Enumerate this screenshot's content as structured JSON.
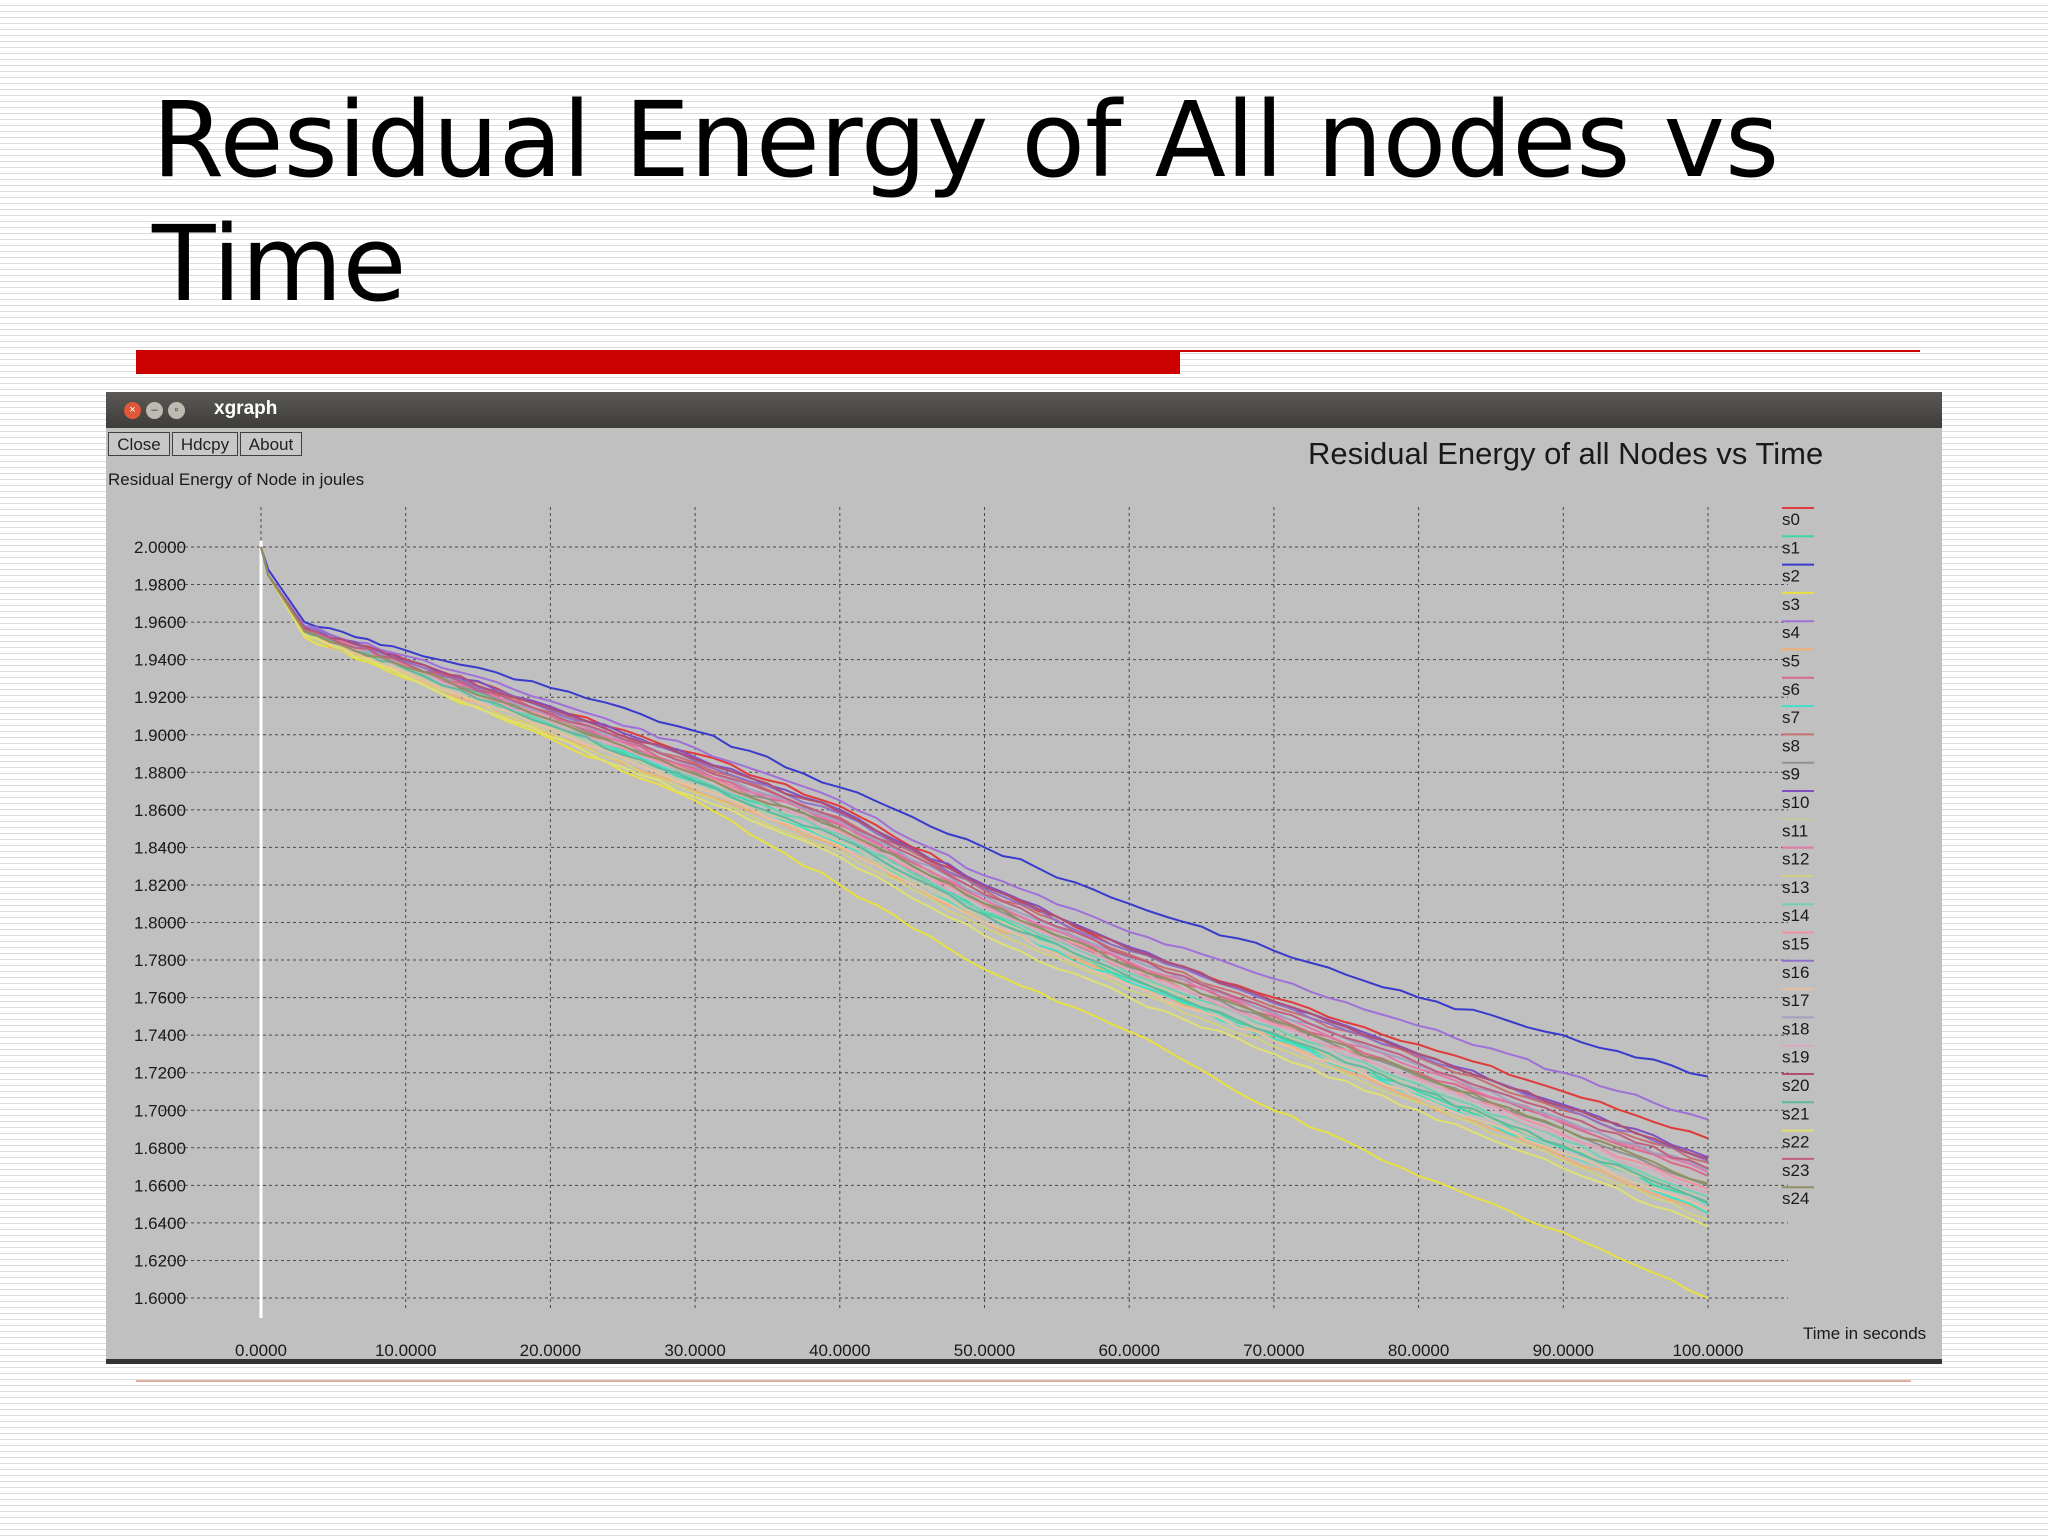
{
  "slide": {
    "title": "Residual Energy of All nodes vs Time"
  },
  "window": {
    "title": "xgraph",
    "buttons": [
      "Close",
      "Hdcpy",
      "About"
    ],
    "control_icons": [
      "close-icon",
      "minimize-icon",
      "maximize-icon"
    ]
  },
  "chart_data": {
    "type": "line",
    "title": "Residual Energy of all Nodes vs Time",
    "xlabel": "Time in seconds",
    "ylabel": "Residual Energy of Node in joules",
    "xlim": [
      0,
      100
    ],
    "ylim": [
      1.6,
      2.0
    ],
    "grid": true,
    "legend_position": "right",
    "x_ticks": [
      "0.0000",
      "10.0000",
      "20.0000",
      "30.0000",
      "40.0000",
      "50.0000",
      "60.0000",
      "70.0000",
      "80.0000",
      "90.0000",
      "100.0000"
    ],
    "y_ticks": [
      "2.0000",
      "1.9800",
      "1.9600",
      "1.9400",
      "1.9200",
      "1.9000",
      "1.8800",
      "1.8600",
      "1.8400",
      "1.8200",
      "1.8000",
      "1.7800",
      "1.7600",
      "1.7400",
      "1.7200",
      "1.7000",
      "1.6800",
      "1.6600",
      "1.6400",
      "1.6200",
      "1.6000"
    ],
    "x": [
      0,
      0.5,
      3,
      10,
      20,
      30,
      40,
      50,
      60,
      70,
      80,
      90,
      100
    ],
    "series": [
      {
        "name": "s0",
        "color": "#e03a3a",
        "values": [
          2.0,
          1.985,
          1.957,
          1.94,
          1.915,
          1.89,
          1.862,
          1.82,
          1.785,
          1.76,
          1.735,
          1.71,
          1.685
        ]
      },
      {
        "name": "s1",
        "color": "#3ed8a8",
        "values": [
          2.0,
          1.985,
          1.954,
          1.935,
          1.905,
          1.875,
          1.848,
          1.805,
          1.77,
          1.74,
          1.71,
          1.68,
          1.65
        ]
      },
      {
        "name": "s2",
        "color": "#3a3acc",
        "values": [
          2.0,
          1.988,
          1.96,
          1.945,
          1.925,
          1.902,
          1.872,
          1.84,
          1.81,
          1.785,
          1.76,
          1.74,
          1.718
        ]
      },
      {
        "name": "s3",
        "color": "#e8e040",
        "values": [
          2.0,
          1.985,
          1.952,
          1.93,
          1.898,
          1.865,
          1.82,
          1.775,
          1.742,
          1.7,
          1.665,
          1.635,
          1.6
        ]
      },
      {
        "name": "s4",
        "color": "#a070d8",
        "values": [
          2.0,
          1.985,
          1.958,
          1.942,
          1.918,
          1.893,
          1.865,
          1.825,
          1.795,
          1.77,
          1.745,
          1.72,
          1.695
        ]
      },
      {
        "name": "s5",
        "color": "#f0b070",
        "values": [
          2.0,
          1.985,
          1.953,
          1.932,
          1.9,
          1.87,
          1.84,
          1.8,
          1.768,
          1.738,
          1.705,
          1.675,
          1.645
        ]
      },
      {
        "name": "s6",
        "color": "#d86a8a",
        "values": [
          2.0,
          1.985,
          1.956,
          1.937,
          1.91,
          1.882,
          1.852,
          1.812,
          1.778,
          1.75,
          1.72,
          1.693,
          1.665
        ]
      },
      {
        "name": "s7",
        "color": "#40e0c8",
        "values": [
          2.0,
          1.985,
          1.955,
          1.936,
          1.906,
          1.876,
          1.842,
          1.8,
          1.768,
          1.738,
          1.708,
          1.677,
          1.645
        ]
      },
      {
        "name": "s8",
        "color": "#c87070",
        "values": [
          2.0,
          1.985,
          1.956,
          1.938,
          1.912,
          1.885,
          1.856,
          1.817,
          1.783,
          1.755,
          1.728,
          1.7,
          1.672
        ]
      },
      {
        "name": "s9",
        "color": "#909090",
        "values": [
          2.0,
          1.985,
          1.955,
          1.936,
          1.908,
          1.88,
          1.85,
          1.81,
          1.776,
          1.747,
          1.718,
          1.69,
          1.66
        ]
      },
      {
        "name": "s10",
        "color": "#8050c0",
        "values": [
          2.0,
          1.985,
          1.957,
          1.94,
          1.915,
          1.888,
          1.86,
          1.82,
          1.787,
          1.758,
          1.73,
          1.703,
          1.675
        ]
      },
      {
        "name": "s11",
        "color": "#c8c8a0",
        "values": [
          2.0,
          1.985,
          1.954,
          1.934,
          1.904,
          1.873,
          1.843,
          1.803,
          1.771,
          1.741,
          1.711,
          1.681,
          1.651
        ]
      },
      {
        "name": "s12",
        "color": "#e07aa8",
        "values": [
          2.0,
          1.985,
          1.956,
          1.937,
          1.91,
          1.881,
          1.853,
          1.812,
          1.779,
          1.751,
          1.722,
          1.694,
          1.667
        ]
      },
      {
        "name": "s13",
        "color": "#d0d080",
        "values": [
          2.0,
          1.985,
          1.953,
          1.932,
          1.901,
          1.869,
          1.838,
          1.797,
          1.764,
          1.734,
          1.704,
          1.673,
          1.642
        ]
      },
      {
        "name": "s14",
        "color": "#70d0b0",
        "values": [
          2.0,
          1.985,
          1.955,
          1.935,
          1.906,
          1.877,
          1.847,
          1.806,
          1.773,
          1.744,
          1.714,
          1.684,
          1.654
        ]
      },
      {
        "name": "s15",
        "color": "#f090a0",
        "values": [
          2.0,
          1.985,
          1.955,
          1.936,
          1.908,
          1.879,
          1.849,
          1.809,
          1.775,
          1.746,
          1.717,
          1.687,
          1.658
        ]
      },
      {
        "name": "s16",
        "color": "#9070c8",
        "values": [
          2.0,
          1.985,
          1.957,
          1.939,
          1.913,
          1.886,
          1.858,
          1.818,
          1.785,
          1.757,
          1.729,
          1.701,
          1.673
        ]
      },
      {
        "name": "s17",
        "color": "#e8c0a0",
        "values": [
          2.0,
          1.985,
          1.954,
          1.933,
          1.903,
          1.872,
          1.841,
          1.8,
          1.767,
          1.737,
          1.707,
          1.677,
          1.647
        ]
      },
      {
        "name": "s18",
        "color": "#a0a0c0",
        "values": [
          2.0,
          1.985,
          1.956,
          1.938,
          1.911,
          1.883,
          1.854,
          1.814,
          1.781,
          1.752,
          1.724,
          1.695,
          1.668
        ]
      },
      {
        "name": "s19",
        "color": "#d8a8c0",
        "values": [
          2.0,
          1.985,
          1.955,
          1.936,
          1.907,
          1.878,
          1.848,
          1.808,
          1.775,
          1.745,
          1.716,
          1.686,
          1.656
        ]
      },
      {
        "name": "s20",
        "color": "#b05070",
        "values": [
          2.0,
          1.985,
          1.957,
          1.94,
          1.914,
          1.887,
          1.859,
          1.819,
          1.786,
          1.758,
          1.73,
          1.702,
          1.674
        ]
      },
      {
        "name": "s21",
        "color": "#60b8a0",
        "values": [
          2.0,
          1.985,
          1.955,
          1.935,
          1.905,
          1.875,
          1.845,
          1.804,
          1.771,
          1.741,
          1.711,
          1.681,
          1.651
        ]
      },
      {
        "name": "s22",
        "color": "#e0e070",
        "values": [
          2.0,
          1.985,
          1.953,
          1.931,
          1.899,
          1.867,
          1.835,
          1.793,
          1.76,
          1.73,
          1.7,
          1.669,
          1.638
        ]
      },
      {
        "name": "s23",
        "color": "#c06080",
        "values": [
          2.0,
          1.985,
          1.956,
          1.938,
          1.911,
          1.884,
          1.855,
          1.815,
          1.782,
          1.753,
          1.725,
          1.697,
          1.669
        ]
      },
      {
        "name": "s24",
        "color": "#909060",
        "values": [
          2.0,
          1.985,
          1.955,
          1.936,
          1.908,
          1.879,
          1.85,
          1.81,
          1.777,
          1.748,
          1.719,
          1.69,
          1.661
        ]
      }
    ]
  }
}
